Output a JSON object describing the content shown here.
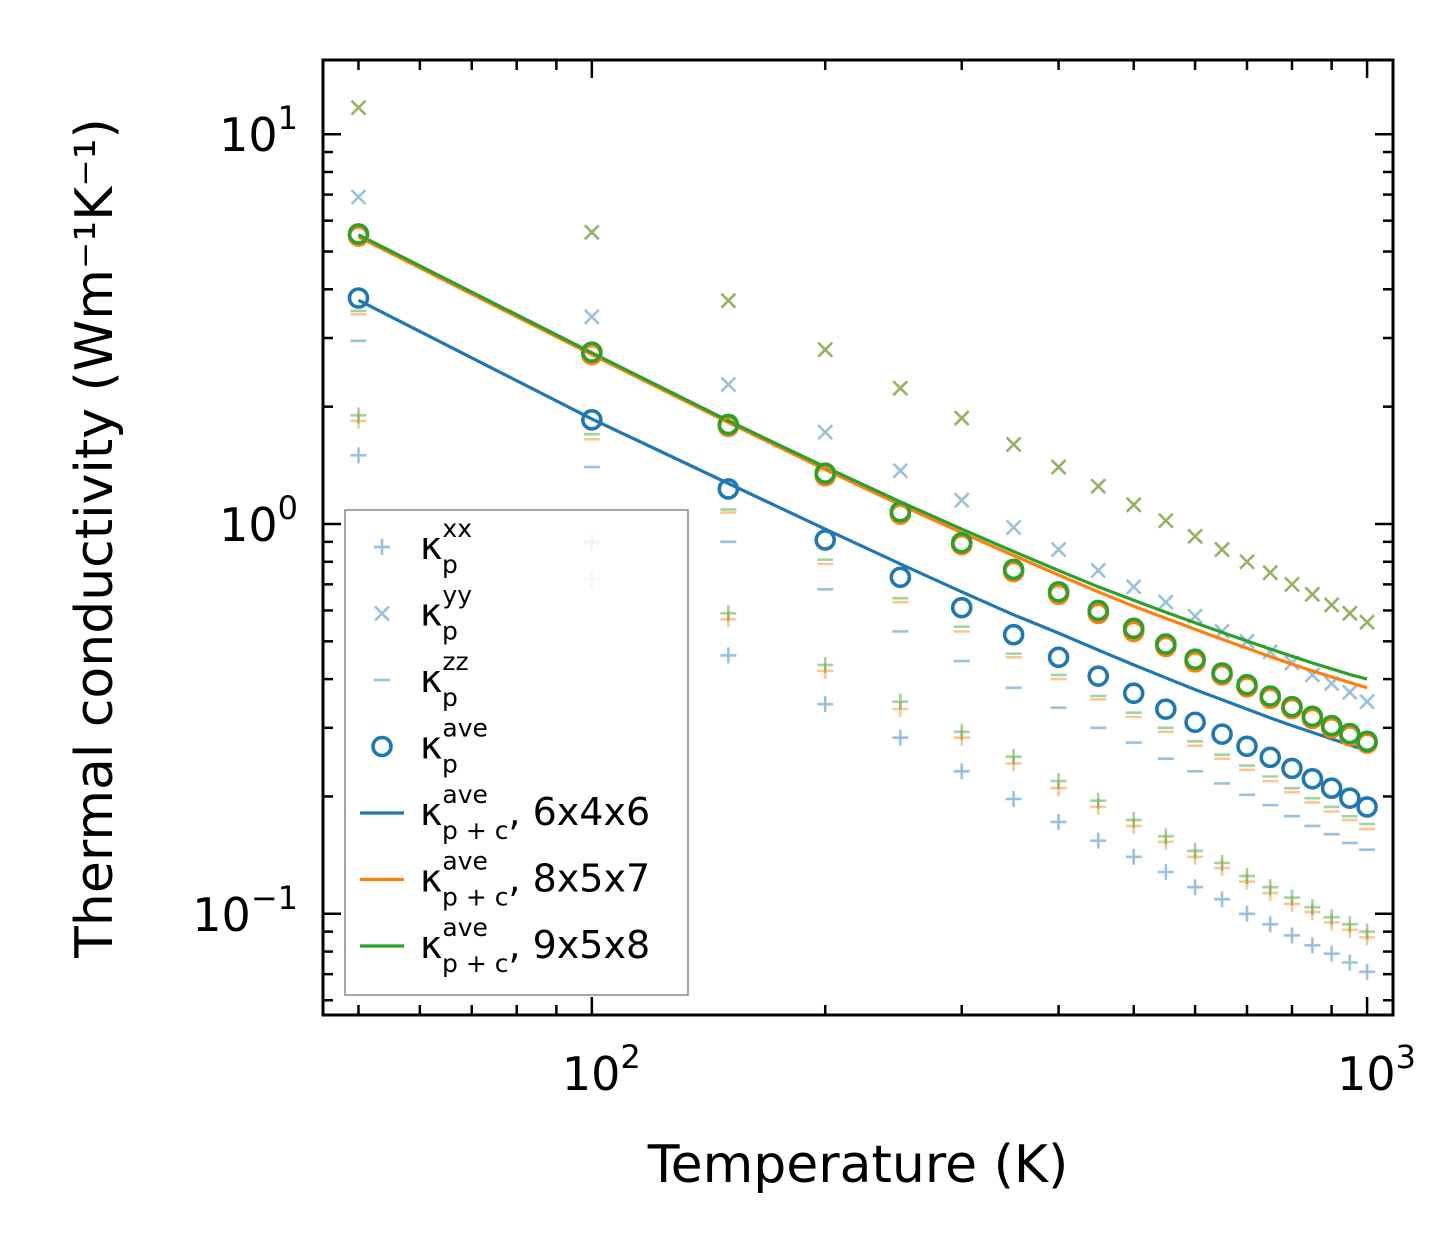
{
  "chart_data": {
    "type": "scatter",
    "title": "",
    "xlabel": "Temperature (K)",
    "ylabel": "Thermal conductivity (Wm⁻¹K⁻¹)",
    "xscale": "log",
    "yscale": "log",
    "xlim": [
      45,
      1080
    ],
    "ylim": [
      0.055,
      15.5
    ],
    "x_ticks": [
      {
        "value": 100,
        "base": "10",
        "exp": "2"
      },
      {
        "value": 1000,
        "base": "10",
        "exp": "3"
      }
    ],
    "y_ticks": [
      {
        "value": 0.1,
        "base": "10",
        "exp": "−1"
      },
      {
        "value": 1,
        "base": "10",
        "exp": "0"
      },
      {
        "value": 10,
        "base": "10",
        "exp": "1"
      }
    ],
    "x": [
      50,
      100,
      150,
      200,
      250,
      300,
      350,
      400,
      450,
      500,
      550,
      600,
      650,
      700,
      750,
      800,
      850,
      900,
      950,
      1000
    ],
    "series": [
      {
        "name": "kp_xx_6x4x6",
        "grid": "6x4x6",
        "component": "xx",
        "marker": "plus",
        "color": "#1f77b4",
        "opacity": 0.45,
        "values": [
          1.5,
          0.72,
          0.46,
          0.345,
          0.283,
          0.232,
          0.197,
          0.172,
          0.154,
          0.14,
          0.128,
          0.117,
          0.109,
          0.1,
          0.094,
          0.088,
          0.083,
          0.079,
          0.075,
          0.071
        ]
      },
      {
        "name": "kp_xx_8x5x7",
        "grid": "8x5x7",
        "component": "xx",
        "marker": "plus",
        "color": "#ff7f0e",
        "opacity": 0.45,
        "values": [
          1.84,
          0.89,
          0.57,
          0.42,
          0.335,
          0.283,
          0.243,
          0.21,
          0.188,
          0.168,
          0.153,
          0.14,
          0.131,
          0.121,
          0.113,
          0.106,
          0.101,
          0.095,
          0.091,
          0.087
        ]
      },
      {
        "name": "kp_xx_9x5x8",
        "grid": "9x5x8",
        "component": "xx",
        "marker": "plus",
        "color": "#2ca02c",
        "opacity": 0.45,
        "values": [
          1.9,
          0.9,
          0.59,
          0.435,
          0.35,
          0.293,
          0.253,
          0.219,
          0.195,
          0.174,
          0.158,
          0.145,
          0.135,
          0.125,
          0.117,
          0.11,
          0.104,
          0.098,
          0.094,
          0.09
        ]
      },
      {
        "name": "kp_yy_6x4x6",
        "grid": "6x4x6",
        "component": "yy",
        "marker": "cross",
        "color": "#1f77b4",
        "opacity": 0.45,
        "values": [
          6.9,
          3.4,
          2.28,
          1.72,
          1.37,
          1.15,
          0.98,
          0.86,
          0.76,
          0.69,
          0.63,
          0.58,
          0.53,
          0.5,
          0.47,
          0.44,
          0.41,
          0.39,
          0.37,
          0.35
        ]
      },
      {
        "name": "kp_yy_9x5x8",
        "grid": "9x5x8",
        "component": "yy",
        "marker": "cross",
        "color": "#5a8a10",
        "opacity": 0.65,
        "values": [
          11.7,
          5.6,
          3.74,
          2.8,
          2.23,
          1.87,
          1.6,
          1.4,
          1.25,
          1.12,
          1.02,
          0.93,
          0.86,
          0.8,
          0.75,
          0.7,
          0.66,
          0.62,
          0.59,
          0.56
        ]
      },
      {
        "name": "kp_zz_6x4x6",
        "grid": "6x4x6",
        "component": "zz",
        "marker": "hline",
        "color": "#1f77b4",
        "opacity": 0.45,
        "values": [
          2.95,
          1.4,
          0.9,
          0.68,
          0.53,
          0.445,
          0.38,
          0.338,
          0.3,
          0.275,
          0.25,
          0.232,
          0.216,
          0.202,
          0.19,
          0.178,
          0.168,
          0.16,
          0.152,
          0.146
        ]
      },
      {
        "name": "kp_zz_8x5x7",
        "grid": "8x5x7",
        "component": "zz",
        "marker": "hline",
        "color": "#ff7f0e",
        "opacity": 0.45,
        "values": [
          3.45,
          1.65,
          1.07,
          0.79,
          0.63,
          0.53,
          0.455,
          0.4,
          0.355,
          0.32,
          0.293,
          0.27,
          0.25,
          0.234,
          0.219,
          0.205,
          0.193,
          0.183,
          0.174,
          0.165
        ]
      },
      {
        "name": "kp_zz_9x5x8",
        "grid": "9x5x8",
        "component": "zz",
        "marker": "hline",
        "color": "#2ca02c",
        "opacity": 0.45,
        "values": [
          3.52,
          1.7,
          1.09,
          0.81,
          0.645,
          0.545,
          0.465,
          0.41,
          0.362,
          0.328,
          0.3,
          0.277,
          0.256,
          0.24,
          0.225,
          0.21,
          0.198,
          0.188,
          0.178,
          0.17
        ]
      },
      {
        "name": "kp_ave_6x4x6",
        "grid": "6x4x6",
        "component": "ave",
        "marker": "circle",
        "color": "#1f77b4",
        "opacity": 1,
        "values": [
          3.8,
          1.85,
          1.23,
          0.91,
          0.73,
          0.61,
          0.52,
          0.455,
          0.407,
          0.368,
          0.335,
          0.31,
          0.289,
          0.269,
          0.252,
          0.236,
          0.222,
          0.21,
          0.198,
          0.188
        ]
      },
      {
        "name": "kp_ave_8x5x7",
        "grid": "8x5x7",
        "component": "ave",
        "marker": "circle",
        "color": "#ff7f0e",
        "opacity": 1,
        "values": [
          5.48,
          2.72,
          1.78,
          1.33,
          1.06,
          0.885,
          0.755,
          0.66,
          0.59,
          0.53,
          0.485,
          0.443,
          0.41,
          0.382,
          0.357,
          0.336,
          0.317,
          0.3,
          0.286,
          0.274
        ]
      },
      {
        "name": "kp_ave_9x5x8",
        "grid": "9x5x8",
        "component": "ave",
        "marker": "circle",
        "color": "#2ca02c",
        "opacity": 1,
        "values": [
          5.55,
          2.76,
          1.8,
          1.35,
          1.075,
          0.895,
          0.765,
          0.67,
          0.6,
          0.54,
          0.492,
          0.45,
          0.415,
          0.387,
          0.362,
          0.34,
          0.321,
          0.304,
          0.29,
          0.277
        ]
      },
      {
        "name": "kpc_ave_6x4x6",
        "grid": "6x4x6",
        "component": "ave_pc",
        "marker": "line",
        "color": "#1f77b4",
        "opacity": 1,
        "values": [
          3.75,
          1.86,
          1.27,
          0.97,
          0.79,
          0.67,
          0.585,
          0.525,
          0.475,
          0.435,
          0.403,
          0.376,
          0.354,
          0.335,
          0.318,
          0.304,
          0.292,
          0.281,
          0.271,
          0.262
        ]
      },
      {
        "name": "kpc_ave_8x5x7",
        "grid": "8x5x7",
        "component": "ave_pc",
        "marker": "line",
        "color": "#ff7f0e",
        "opacity": 1,
        "values": [
          5.45,
          2.72,
          1.82,
          1.38,
          1.12,
          0.95,
          0.83,
          0.74,
          0.67,
          0.615,
          0.573,
          0.537,
          0.506,
          0.48,
          0.457,
          0.437,
          0.42,
          0.405,
          0.392,
          0.38
        ]
      },
      {
        "name": "kpc_ave_9x5x8",
        "grid": "9x5x8",
        "component": "ave_pc",
        "marker": "line",
        "color": "#2ca02c",
        "opacity": 1,
        "values": [
          5.52,
          2.75,
          1.84,
          1.4,
          1.14,
          0.97,
          0.85,
          0.76,
          0.69,
          0.637,
          0.594,
          0.558,
          0.527,
          0.501,
          0.478,
          0.458,
          0.44,
          0.425,
          0.411,
          0.4
        ]
      }
    ],
    "legend": {
      "placement": "lower-left",
      "entries": [
        {
          "marker": "plus",
          "color": "#1f77b4",
          "opacity": 0.45,
          "symbol": "κ",
          "sub": "p",
          "sup": "xx",
          "suffix": ""
        },
        {
          "marker": "cross",
          "color": "#1f77b4",
          "opacity": 0.45,
          "symbol": "κ",
          "sub": "p",
          "sup": "yy",
          "suffix": ""
        },
        {
          "marker": "hline",
          "color": "#1f77b4",
          "opacity": 0.45,
          "symbol": "κ",
          "sub": "p",
          "sup": "zz",
          "suffix": ""
        },
        {
          "marker": "circle",
          "color": "#1f77b4",
          "opacity": 1,
          "symbol": "κ",
          "sub": "p",
          "sup": "ave",
          "suffix": ""
        },
        {
          "marker": "line",
          "color": "#1f77b4",
          "opacity": 1,
          "symbol": "κ",
          "sub": "p + c",
          "sup": "ave",
          "suffix": ", 6x4x6"
        },
        {
          "marker": "line",
          "color": "#ff7f0e",
          "opacity": 1,
          "symbol": "κ",
          "sub": "p + c",
          "sup": "ave",
          "suffix": ", 8x5x7"
        },
        {
          "marker": "line",
          "color": "#2ca02c",
          "opacity": 1,
          "symbol": "κ",
          "sub": "p + c",
          "sup": "ave",
          "suffix": ", 9x5x8"
        }
      ]
    }
  }
}
